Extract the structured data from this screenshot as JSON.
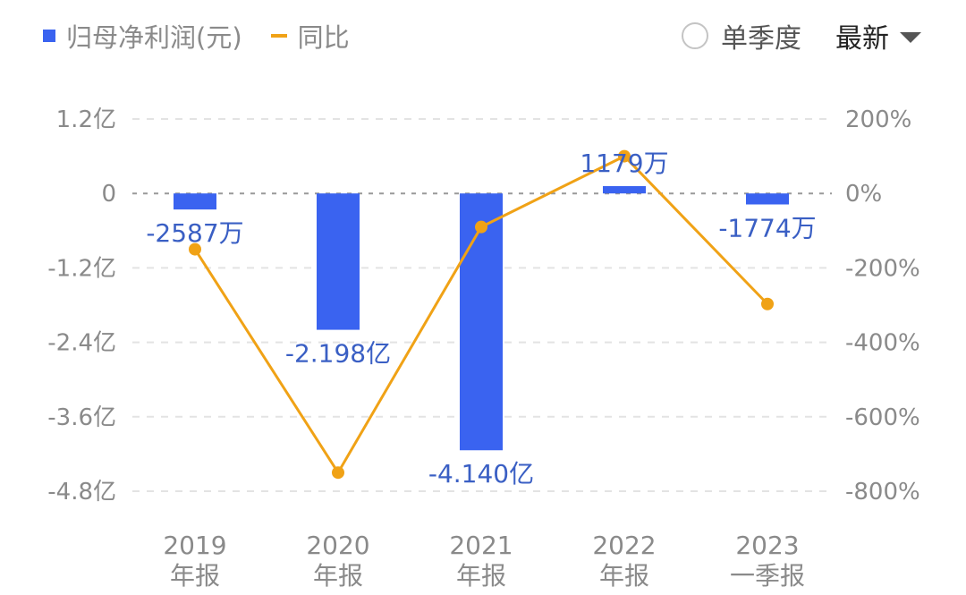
{
  "legend": {
    "bar_label": "归母净利润(元)",
    "line_label": "同比"
  },
  "controls": {
    "single_quarter_label": "单季度",
    "latest_label": "最新"
  },
  "colors": {
    "bar": "#3a63f0",
    "line": "#f0a216",
    "data_label": "#3a5fc4",
    "tick_text": "#8a8a8a",
    "grid": "#e3e3e3",
    "zero_line": "#999999"
  },
  "chart_data": {
    "type": "bar",
    "categories": [
      [
        "2019",
        "年报"
      ],
      [
        "2020",
        "年报"
      ],
      [
        "2021",
        "年报"
      ],
      [
        "2022",
        "年报"
      ],
      [
        "2023",
        "一季报"
      ]
    ],
    "series": [
      {
        "name": "归母净利润(元)",
        "type": "bar",
        "axis": "left",
        "values": [
          -25870000,
          -219800000,
          -414000000,
          11790000,
          -17740000
        ],
        "labels": [
          "-2587万",
          "-2.198亿",
          "-4.140亿",
          "1179万",
          "-1774万"
        ]
      },
      {
        "name": "同比",
        "type": "line",
        "axis": "right",
        "values": [
          -150,
          -750,
          -90,
          100,
          -297
        ]
      }
    ],
    "y_left": {
      "lim": [
        -480000000,
        120000000
      ],
      "ticks": [
        120000000,
        0,
        -120000000,
        -240000000,
        -360000000,
        -480000000
      ],
      "tick_labels": [
        "1.2亿",
        "0",
        "-1.2亿",
        "-2.4亿",
        "-3.6亿",
        "-4.8亿"
      ]
    },
    "y_right": {
      "lim": [
        -800,
        200
      ],
      "tick_labels": [
        "200%",
        "0%",
        "-200%",
        "-400%",
        "-600%",
        "-800%"
      ]
    },
    "grid": true,
    "legend_position": "top-left"
  }
}
